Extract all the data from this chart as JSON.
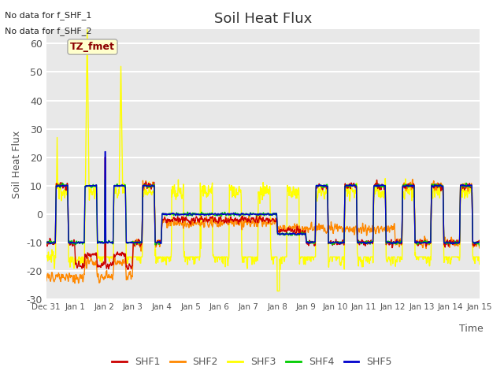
{
  "title": "Soil Heat Flux",
  "ylabel": "Soil Heat Flux",
  "xlabel": "Time",
  "ylim": [
    -30,
    65
  ],
  "yticks": [
    -30,
    -20,
    -10,
    0,
    10,
    20,
    30,
    40,
    50,
    60
  ],
  "bg_color": "#e8e8e8",
  "text_color": "#555555",
  "no_data_lines": [
    "No data for f_SHF_1",
    "No data for f_SHF_2"
  ],
  "tz_label": "TZ_fmet",
  "colors": {
    "SHF1": "#cc0000",
    "SHF2": "#ff8800",
    "SHF3": "#ffff00",
    "SHF4": "#00cc00",
    "SHF5": "#0000cc"
  },
  "lw": 1.0,
  "tick_hours": [
    0,
    24,
    48,
    72,
    96,
    120,
    144,
    168,
    192,
    216,
    240,
    264,
    288,
    312,
    336,
    360
  ],
  "tick_labels": [
    "Dec 31",
    "Jan 1",
    "Jan 2",
    "Jan 3",
    "Jan 4",
    "Jan 5",
    "Jan 6",
    "Jan 7",
    "Jan 8",
    "Jan 9",
    "Jan 10",
    "Jan 11",
    "Jan 12",
    "Jan 13",
    "Jan 14",
    "Jan 15"
  ]
}
